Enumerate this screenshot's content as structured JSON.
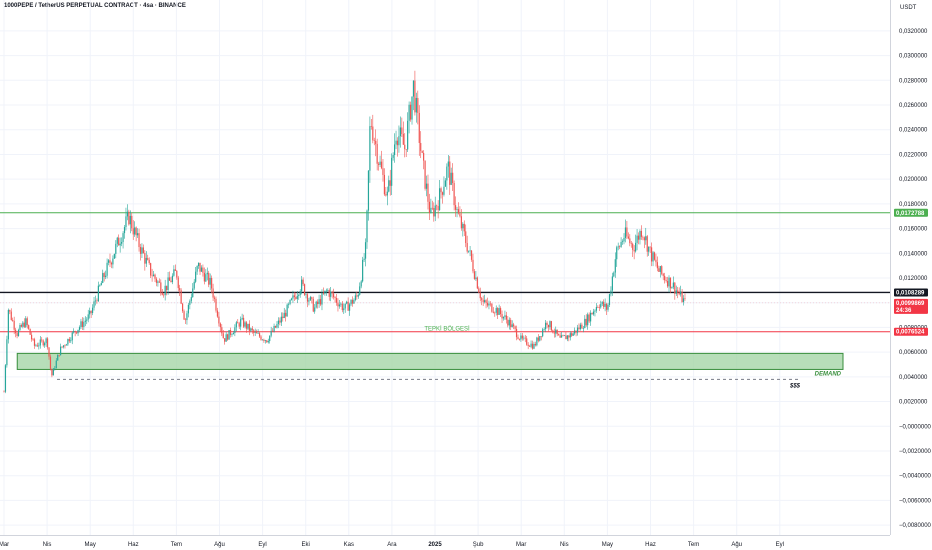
{
  "header": {
    "title": "1000PEPE / TetherUS PERPETUAL CONTRACT · 4sa · BINANCE",
    "currency": "USDT"
  },
  "chart_data": {
    "type": "candlestick",
    "ylim": [
      -0.0088,
      0.0345
    ],
    "y_ticks": [
      "0,0320000",
      "0,0300000",
      "0,0280000",
      "0,0260000",
      "0,0240000",
      "0,0220000",
      "0,0200000",
      "0,0180000",
      "0,0160000",
      "0,0140000",
      "0,0120000",
      "0,0100000",
      "0,0080000",
      "0,0060000",
      "0,0040000",
      "0,0020000",
      "−0,0000000",
      "−0,0020000",
      "−0,0040000",
      "−0,0060000",
      "−0,0080000"
    ],
    "y_tick_values": [
      0.032,
      0.03,
      0.028,
      0.026,
      0.024,
      0.022,
      0.02,
      0.018,
      0.016,
      0.014,
      0.012,
      0.01,
      0.008,
      0.006,
      0.004,
      0.002,
      0,
      -0.002,
      -0.004,
      -0.006,
      -0.008
    ],
    "x_ticks": [
      {
        "label": "Mar",
        "t": 0
      },
      {
        "label": "Nis",
        "t": 1
      },
      {
        "label": "May",
        "t": 2
      },
      {
        "label": "Haz",
        "t": 3
      },
      {
        "label": "Tem",
        "t": 4
      },
      {
        "label": "Ağu",
        "t": 5
      },
      {
        "label": "Eyl",
        "t": 6
      },
      {
        "label": "Eki",
        "t": 7
      },
      {
        "label": "Kas",
        "t": 8
      },
      {
        "label": "Ara",
        "t": 9
      },
      {
        "label": "2025",
        "t": 10,
        "bold": true
      },
      {
        "label": "Şub",
        "t": 11
      },
      {
        "label": "Mar",
        "t": 12
      },
      {
        "label": "Nis",
        "t": 13
      },
      {
        "label": "May",
        "t": 14
      },
      {
        "label": "Haz",
        "t": 15
      },
      {
        "label": "Tem",
        "t": 16
      },
      {
        "label": "Ağu",
        "t": 17
      },
      {
        "label": "Eyl",
        "t": 18
      }
    ],
    "price_path": [
      [
        0.0,
        0.0028
      ],
      [
        0.1,
        0.0095
      ],
      [
        0.3,
        0.0075
      ],
      [
        0.5,
        0.0085
      ],
      [
        0.7,
        0.0065
      ],
      [
        1.0,
        0.007
      ],
      [
        1.1,
        0.004
      ],
      [
        1.3,
        0.0062
      ],
      [
        1.6,
        0.0075
      ],
      [
        2.0,
        0.009
      ],
      [
        2.3,
        0.012
      ],
      [
        2.6,
        0.0145
      ],
      [
        2.9,
        0.017
      ],
      [
        3.1,
        0.015
      ],
      [
        3.4,
        0.0125
      ],
      [
        3.7,
        0.011
      ],
      [
        4.0,
        0.0125
      ],
      [
        4.2,
        0.0085
      ],
      [
        4.5,
        0.013
      ],
      [
        4.8,
        0.0115
      ],
      [
        5.1,
        0.007
      ],
      [
        5.5,
        0.0085
      ],
      [
        5.8,
        0.0075
      ],
      [
        6.1,
        0.007
      ],
      [
        6.5,
        0.009
      ],
      [
        6.9,
        0.0115
      ],
      [
        7.2,
        0.0095
      ],
      [
        7.5,
        0.011
      ],
      [
        7.9,
        0.0095
      ],
      [
        8.2,
        0.0105
      ],
      [
        8.4,
        0.0145
      ],
      [
        8.5,
        0.025
      ],
      [
        8.7,
        0.0215
      ],
      [
        8.9,
        0.0185
      ],
      [
        9.1,
        0.024
      ],
      [
        9.3,
        0.0225
      ],
      [
        9.5,
        0.0275
      ],
      [
        9.7,
        0.0215
      ],
      [
        9.9,
        0.017
      ],
      [
        10.1,
        0.0185
      ],
      [
        10.3,
        0.021
      ],
      [
        10.5,
        0.0175
      ],
      [
        10.8,
        0.014
      ],
      [
        11.1,
        0.01
      ],
      [
        11.4,
        0.0095
      ],
      [
        11.7,
        0.0085
      ],
      [
        12.0,
        0.007
      ],
      [
        12.3,
        0.0065
      ],
      [
        12.6,
        0.0085
      ],
      [
        12.9,
        0.007
      ],
      [
        13.2,
        0.0075
      ],
      [
        13.5,
        0.0085
      ],
      [
        13.8,
        0.01
      ],
      [
        14.0,
        0.0095
      ],
      [
        14.2,
        0.014
      ],
      [
        14.4,
        0.0155
      ],
      [
        14.6,
        0.0145
      ],
      [
        14.8,
        0.016
      ],
      [
        15.0,
        0.014
      ],
      [
        15.2,
        0.0125
      ],
      [
        15.5,
        0.0115
      ],
      [
        15.8,
        0.01
      ]
    ],
    "levels": [
      {
        "name": "green-resistance",
        "value": 0.0172788,
        "label": "0,0172788",
        "color": "#4caf50"
      },
      {
        "name": "black-level",
        "value": 0.0108289,
        "label": "0,0108289",
        "color": "#131722"
      },
      {
        "name": "red-support",
        "value": 0.0076524,
        "label": "0,0076524",
        "color": "#f23645"
      }
    ],
    "current_price": {
      "value": 0.0099869,
      "label": "0,0099869",
      "countdown": "24:36",
      "color": "#f23645"
    },
    "annotations": {
      "tepki": "TEPKİ BÖLGESİ",
      "demand": "DEMAND",
      "dollars": "$$$"
    },
    "demand_zone": {
      "top": 0.0059,
      "bottom": 0.0046,
      "t_start": 0.4,
      "t_end": 19.5
    },
    "dashed_level": {
      "value": 0.0038,
      "t_start": 1.2,
      "t_end": 18.4
    },
    "colors": {
      "up": "#26a69a",
      "down": "#ef5350",
      "demand_fill": "#a5d6a7",
      "demand_border": "#388e3c",
      "grid": "#f0f3fa"
    }
  }
}
